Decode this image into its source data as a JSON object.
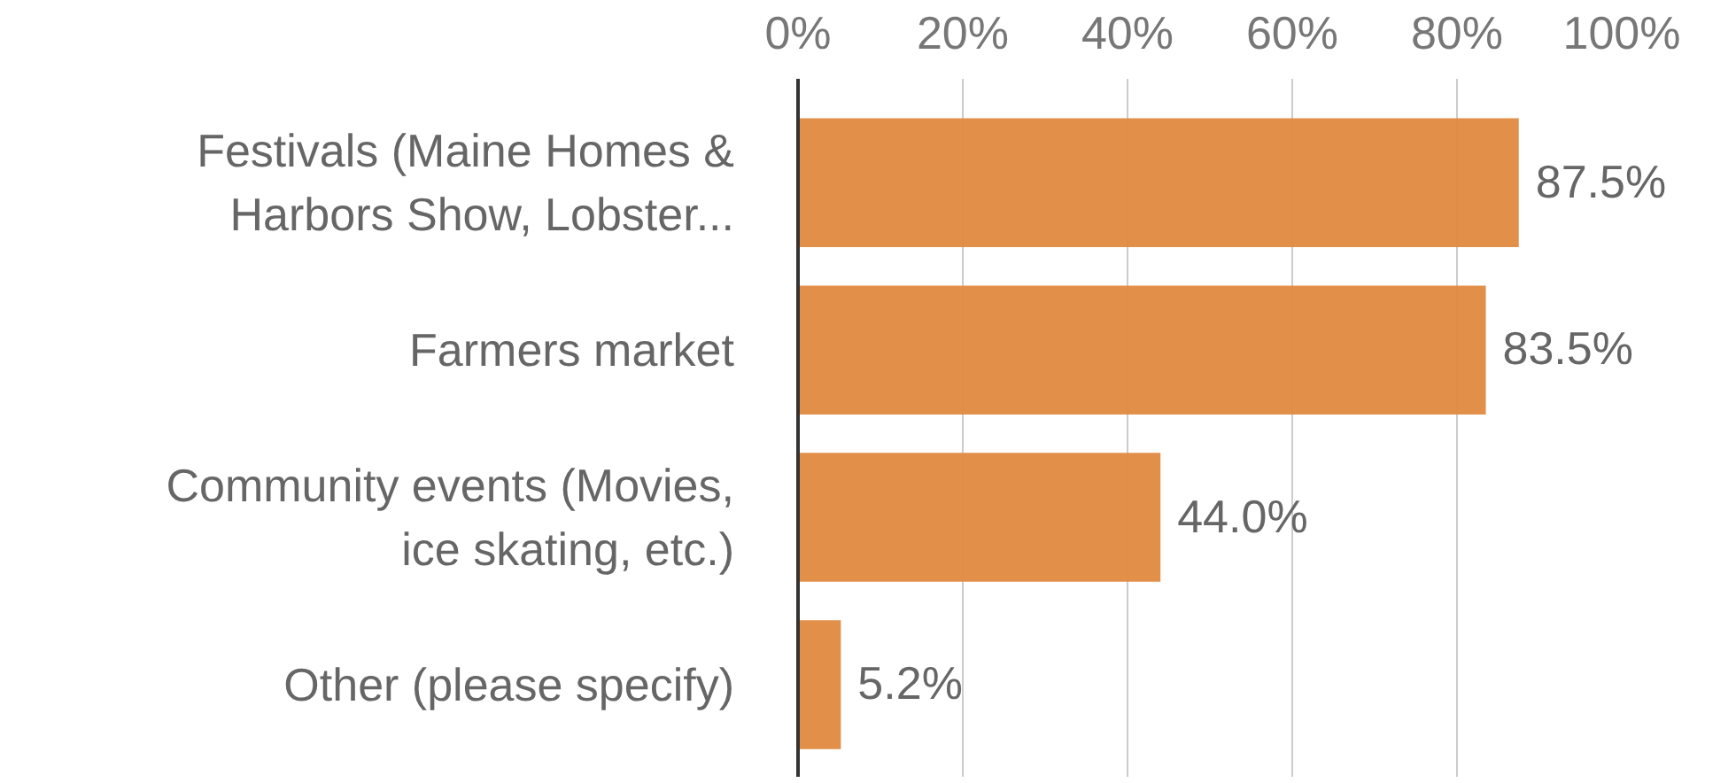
{
  "chart_data": {
    "type": "bar",
    "orientation": "horizontal",
    "categories": [
      "Festivals (Maine Homes & Harbors Show, Lobster...",
      "Farmers market",
      "Community events (Movies, ice skating, etc.)",
      "Other (please specify)"
    ],
    "values": [
      87.5,
      83.5,
      44.0,
      5.2
    ],
    "value_labels": [
      "87.5%",
      "83.5%",
      "44.0%",
      "5.2%"
    ],
    "color": "#e0893f",
    "xlim": [
      0,
      100
    ],
    "xticks": [
      {
        "value": 0,
        "label": "0%"
      },
      {
        "value": 20,
        "label": "20%"
      },
      {
        "value": 40,
        "label": "40%"
      },
      {
        "value": 60,
        "label": "60%"
      },
      {
        "value": 80,
        "label": "80%"
      },
      {
        "value": 100,
        "label": "100%"
      }
    ],
    "grid": "x"
  }
}
